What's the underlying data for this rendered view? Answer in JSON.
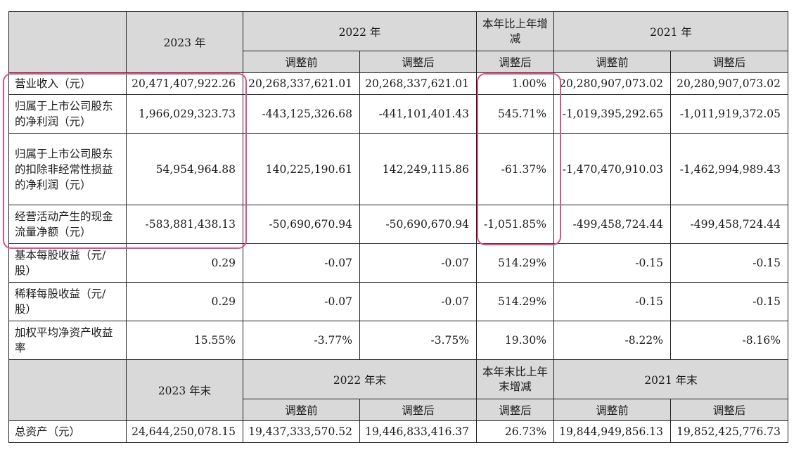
{
  "header1": {
    "y2023": "2023 年",
    "y2022": "2022 年",
    "yoy": "本年比上年增减",
    "y2021": "2021 年",
    "before": "调整前",
    "after": "调整后"
  },
  "rows1": [
    {
      "label": "营业收入（元）",
      "v": [
        "20,471,407,922.26",
        "20,268,337,621.01",
        "20,268,337,621.01",
        "1.00%",
        "20,280,907,073.02",
        "20,280,907,073.02"
      ]
    },
    {
      "label": "归属于上市公司股东的净利润（元）",
      "v": [
        "1,966,029,323.73",
        "-443,125,326.68",
        "-441,101,401.43",
        "545.71%",
        "-1,019,395,292.65",
        "-1,011,919,372.05"
      ]
    },
    {
      "label": "归属于上市公司股东的扣除非经常性损益的净利润（元）",
      "v": [
        "54,954,964.88",
        "140,225,190.61",
        "142,249,115.86",
        "-61.37%",
        "-1,470,470,910.03",
        "-1,462,994,989.43"
      ]
    },
    {
      "label": "经营活动产生的现金流量净额（元）",
      "v": [
        "-583,881,438.13",
        "-50,690,670.94",
        "-50,690,670.94",
        "-1,051.85%",
        "-499,458,724.44",
        "-499,458,724.44"
      ]
    },
    {
      "label": "基本每股收益（元/股）",
      "v": [
        "0.29",
        "-0.07",
        "-0.07",
        "514.29%",
        "-0.15",
        "-0.15"
      ]
    },
    {
      "label": "稀释每股收益（元/股）",
      "v": [
        "0.29",
        "-0.07",
        "-0.07",
        "514.29%",
        "-0.15",
        "-0.15"
      ]
    },
    {
      "label": "加权平均净资产收益率",
      "v": [
        "15.55%",
        "-3.77%",
        "-3.75%",
        "19.30%",
        "-8.22%",
        "-8.16%"
      ]
    }
  ],
  "header2": {
    "y2023": "2023 年末",
    "y2022": "2022 年末",
    "yoy": "本年末比上年末增减",
    "y2021": "2021 年末",
    "before": "调整前",
    "after": "调整后"
  },
  "rows2": [
    {
      "label": "总资产（元）",
      "v": [
        "24,644,250,078.15",
        "19,437,333,570.52",
        "19,446,833,416.37",
        "26.73%",
        "19,844,949,856.13",
        "19,852,425,776.73"
      ]
    }
  ],
  "highlight_color": "#e0507a"
}
